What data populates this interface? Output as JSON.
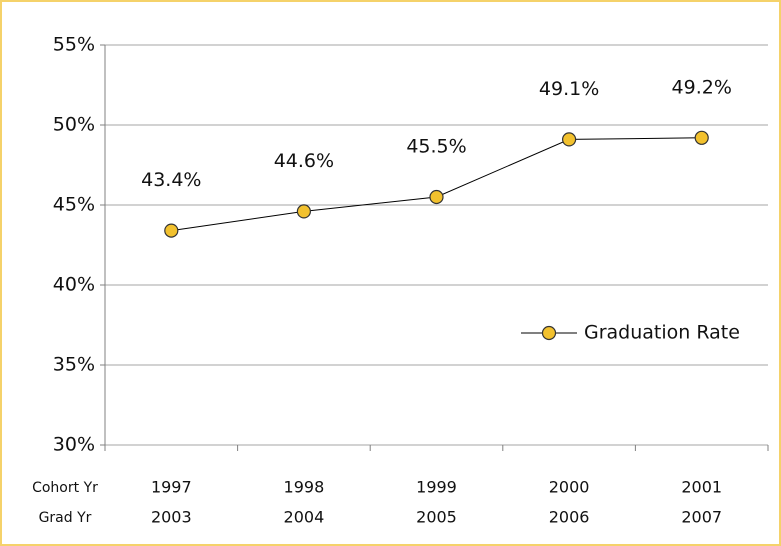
{
  "chart_data": {
    "type": "line",
    "categories": [
      "1997",
      "1998",
      "1999",
      "2000",
      "2001"
    ],
    "categories2": [
      "2003",
      "2004",
      "2005",
      "2006",
      "2007"
    ],
    "category_row_labels": [
      "Cohort Yr",
      "Grad Yr"
    ],
    "series": [
      {
        "name": "Graduation Rate",
        "color": "#f2c12e",
        "values": [
          43.4,
          44.6,
          45.5,
          49.1,
          49.2
        ],
        "value_labels": [
          "43.4%",
          "44.6%",
          "45.5%",
          "49.1%",
          "49.2%"
        ]
      }
    ],
    "ylim": [
      30,
      55
    ],
    "yticks": [
      {
        "value": 30,
        "label": "30%"
      },
      {
        "value": 35,
        "label": "35%"
      },
      {
        "value": 40,
        "label": "40%"
      },
      {
        "value": 45,
        "label": "45%"
      },
      {
        "value": 50,
        "label": "50%"
      },
      {
        "value": 55,
        "label": "55%"
      }
    ],
    "grid": true,
    "legend": "right"
  }
}
